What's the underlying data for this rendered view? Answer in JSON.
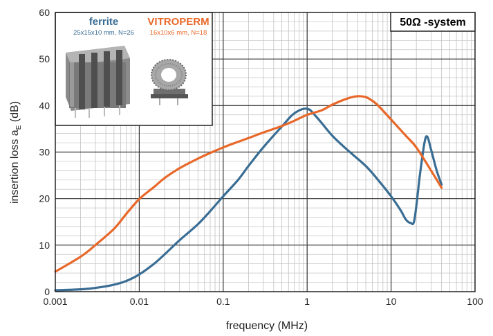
{
  "chart_data": {
    "type": "line",
    "xlabel": "frequency (MHz)",
    "ylabel": "insertion loss a",
    "ylabel_sub": "E",
    "ylabel_unit": " (dB)",
    "xscale": "log",
    "xlim": [
      0.001,
      100
    ],
    "ylim": [
      0,
      60
    ],
    "x_ticks": [
      "0.001",
      "0.01",
      "0.1",
      "1",
      "10",
      "100"
    ],
    "y_ticks": [
      0,
      10,
      20,
      30,
      40,
      50,
      60
    ],
    "grid": true,
    "system_label": "50Ω -system",
    "series": [
      {
        "name": "ferrite",
        "detail": "25x15x10 mm, N=26",
        "color": "#3a6d94",
        "points": [
          [
            0.001,
            0.3
          ],
          [
            0.002,
            0.5
          ],
          [
            0.003,
            0.8
          ],
          [
            0.005,
            1.5
          ],
          [
            0.007,
            2.3
          ],
          [
            0.01,
            3.7
          ],
          [
            0.015,
            6.0
          ],
          [
            0.02,
            8.0
          ],
          [
            0.03,
            11.0
          ],
          [
            0.05,
            14.5
          ],
          [
            0.07,
            17.3
          ],
          [
            0.1,
            20.5
          ],
          [
            0.15,
            24.0
          ],
          [
            0.2,
            27.0
          ],
          [
            0.3,
            31.0
          ],
          [
            0.5,
            35.5
          ],
          [
            0.7,
            38.3
          ],
          [
            1.0,
            39.3
          ],
          [
            1.3,
            37.5
          ],
          [
            2.0,
            33.5
          ],
          [
            3.0,
            30.5
          ],
          [
            5.0,
            27.0
          ],
          [
            7.0,
            24.0
          ],
          [
            10.0,
            20.5
          ],
          [
            13.0,
            17.5
          ],
          [
            15.0,
            15.5
          ],
          [
            17.0,
            14.8
          ],
          [
            19.0,
            15.5
          ],
          [
            22.0,
            25.0
          ],
          [
            25.0,
            32.0
          ],
          [
            27.0,
            33.3
          ],
          [
            30.0,
            30.5
          ],
          [
            35.0,
            26.0
          ],
          [
            40.0,
            23.0
          ]
        ]
      },
      {
        "name": "VITROPERM",
        "detail": "16x10x6 mm, N=18",
        "color": "#e8682a",
        "points": [
          [
            0.001,
            4.3
          ],
          [
            0.002,
            7.5
          ],
          [
            0.003,
            10.0
          ],
          [
            0.005,
            13.5
          ],
          [
            0.007,
            16.7
          ],
          [
            0.01,
            19.9
          ],
          [
            0.015,
            22.5
          ],
          [
            0.02,
            24.4
          ],
          [
            0.03,
            26.5
          ],
          [
            0.05,
            28.6
          ],
          [
            0.07,
            29.8
          ],
          [
            0.1,
            31.0
          ],
          [
            0.15,
            32.2
          ],
          [
            0.2,
            33.0
          ],
          [
            0.3,
            34.2
          ],
          [
            0.5,
            35.6
          ],
          [
            0.7,
            36.7
          ],
          [
            1.0,
            38.0
          ],
          [
            1.5,
            39.0
          ],
          [
            2.0,
            40.2
          ],
          [
            3.0,
            41.5
          ],
          [
            4.0,
            42.0
          ],
          [
            5.0,
            41.8
          ],
          [
            6.0,
            41.0
          ],
          [
            7.0,
            40.0
          ],
          [
            10.0,
            37.0
          ],
          [
            15.0,
            33.5
          ],
          [
            20.0,
            31.0
          ],
          [
            30.0,
            26.0
          ],
          [
            40.0,
            22.3
          ]
        ]
      }
    ]
  }
}
